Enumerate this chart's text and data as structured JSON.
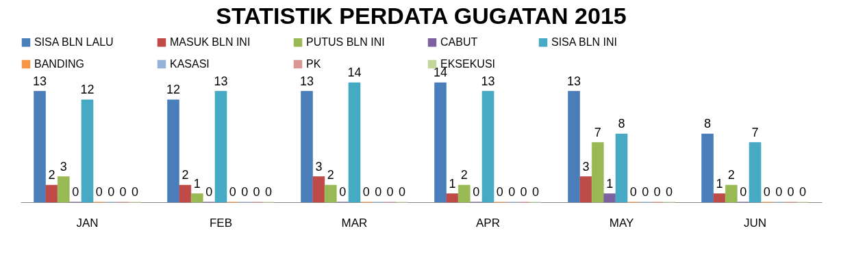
{
  "chart_data": {
    "type": "bar",
    "title": "STATISTIK PERDATA GUGATAN 2015",
    "categories": [
      "JAN",
      "FEB",
      "MAR",
      "APR",
      "MAY",
      "JUN"
    ],
    "series": [
      {
        "name": "SISA BLN LALU",
        "color": "#4a7ebb",
        "values": [
          13,
          12,
          13,
          14,
          13,
          8
        ]
      },
      {
        "name": "MASUK BLN INI",
        "color": "#be4b48",
        "values": [
          2,
          2,
          3,
          1,
          3,
          1
        ]
      },
      {
        "name": "PUTUS BLN INI",
        "color": "#98b954",
        "values": [
          3,
          1,
          2,
          2,
          7,
          2
        ]
      },
      {
        "name": "CABUT",
        "color": "#7d60a0",
        "values": [
          0,
          0,
          0,
          0,
          1,
          0
        ]
      },
      {
        "name": "SISA BLN INI",
        "color": "#46aac5",
        "values": [
          12,
          13,
          14,
          13,
          8,
          7
        ]
      },
      {
        "name": "BANDING",
        "color": "#f79646",
        "values": [
          0,
          0,
          0,
          0,
          0,
          0
        ]
      },
      {
        "name": "KASASI",
        "color": "#95b3d7",
        "values": [
          0,
          0,
          0,
          0,
          0,
          0
        ]
      },
      {
        "name": "PK",
        "color": "#d99694",
        "values": [
          0,
          0,
          0,
          0,
          0,
          0
        ]
      },
      {
        "name": "EKSEKUSI",
        "color": "#c3d69b",
        "values": [
          0,
          0,
          0,
          0,
          0,
          0
        ]
      }
    ],
    "data_labels": true,
    "legend": "top",
    "grid": false,
    "tick_labels": "x"
  }
}
